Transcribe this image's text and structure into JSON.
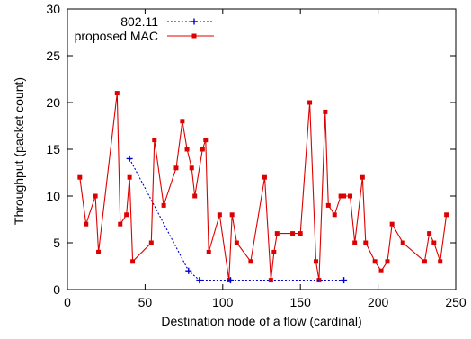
{
  "chart_data": {
    "type": "line",
    "title": "",
    "xlabel": "Destination node of a flow (cardinal)",
    "ylabel": "Throughput (packet count)",
    "xlim": [
      0,
      250
    ],
    "ylim": [
      0,
      30
    ],
    "xticks": [
      0,
      50,
      100,
      150,
      200,
      250
    ],
    "yticks": [
      0,
      5,
      10,
      15,
      20,
      25,
      30
    ],
    "grid": false,
    "legend_position": "top-left",
    "series": [
      {
        "name": "802.11",
        "color": "#0000cc",
        "line_style": "dotted",
        "marker": "plus",
        "x": [
          40,
          78,
          85,
          105,
          178
        ],
        "y": [
          14,
          2,
          1,
          1,
          1
        ]
      },
      {
        "name": "proposed MAC",
        "color": "#dd0000",
        "line_style": "solid",
        "marker": "square",
        "x": [
          8,
          12,
          18,
          20,
          32,
          34,
          38,
          40,
          42,
          54,
          56,
          62,
          70,
          74,
          77,
          80,
          82,
          87,
          89,
          91,
          98,
          104,
          106,
          109,
          118,
          127,
          131,
          133,
          135,
          145,
          150,
          156,
          160,
          162,
          166,
          168,
          172,
          176,
          178,
          182,
          185,
          190,
          192,
          198,
          202,
          206,
          209,
          216,
          230,
          233,
          236,
          240,
          244
        ],
        "y": [
          12,
          7,
          10,
          4,
          21,
          7,
          8,
          12,
          3,
          5,
          16,
          9,
          13,
          18,
          15,
          13,
          10,
          15,
          16,
          4,
          8,
          1,
          8,
          5,
          3,
          12,
          1,
          4,
          6,
          6,
          6,
          20,
          3,
          1,
          19,
          9,
          8,
          10,
          10,
          10,
          5,
          12,
          5,
          3,
          2,
          3,
          7,
          5,
          3,
          6,
          5,
          3,
          8
        ]
      }
    ]
  }
}
